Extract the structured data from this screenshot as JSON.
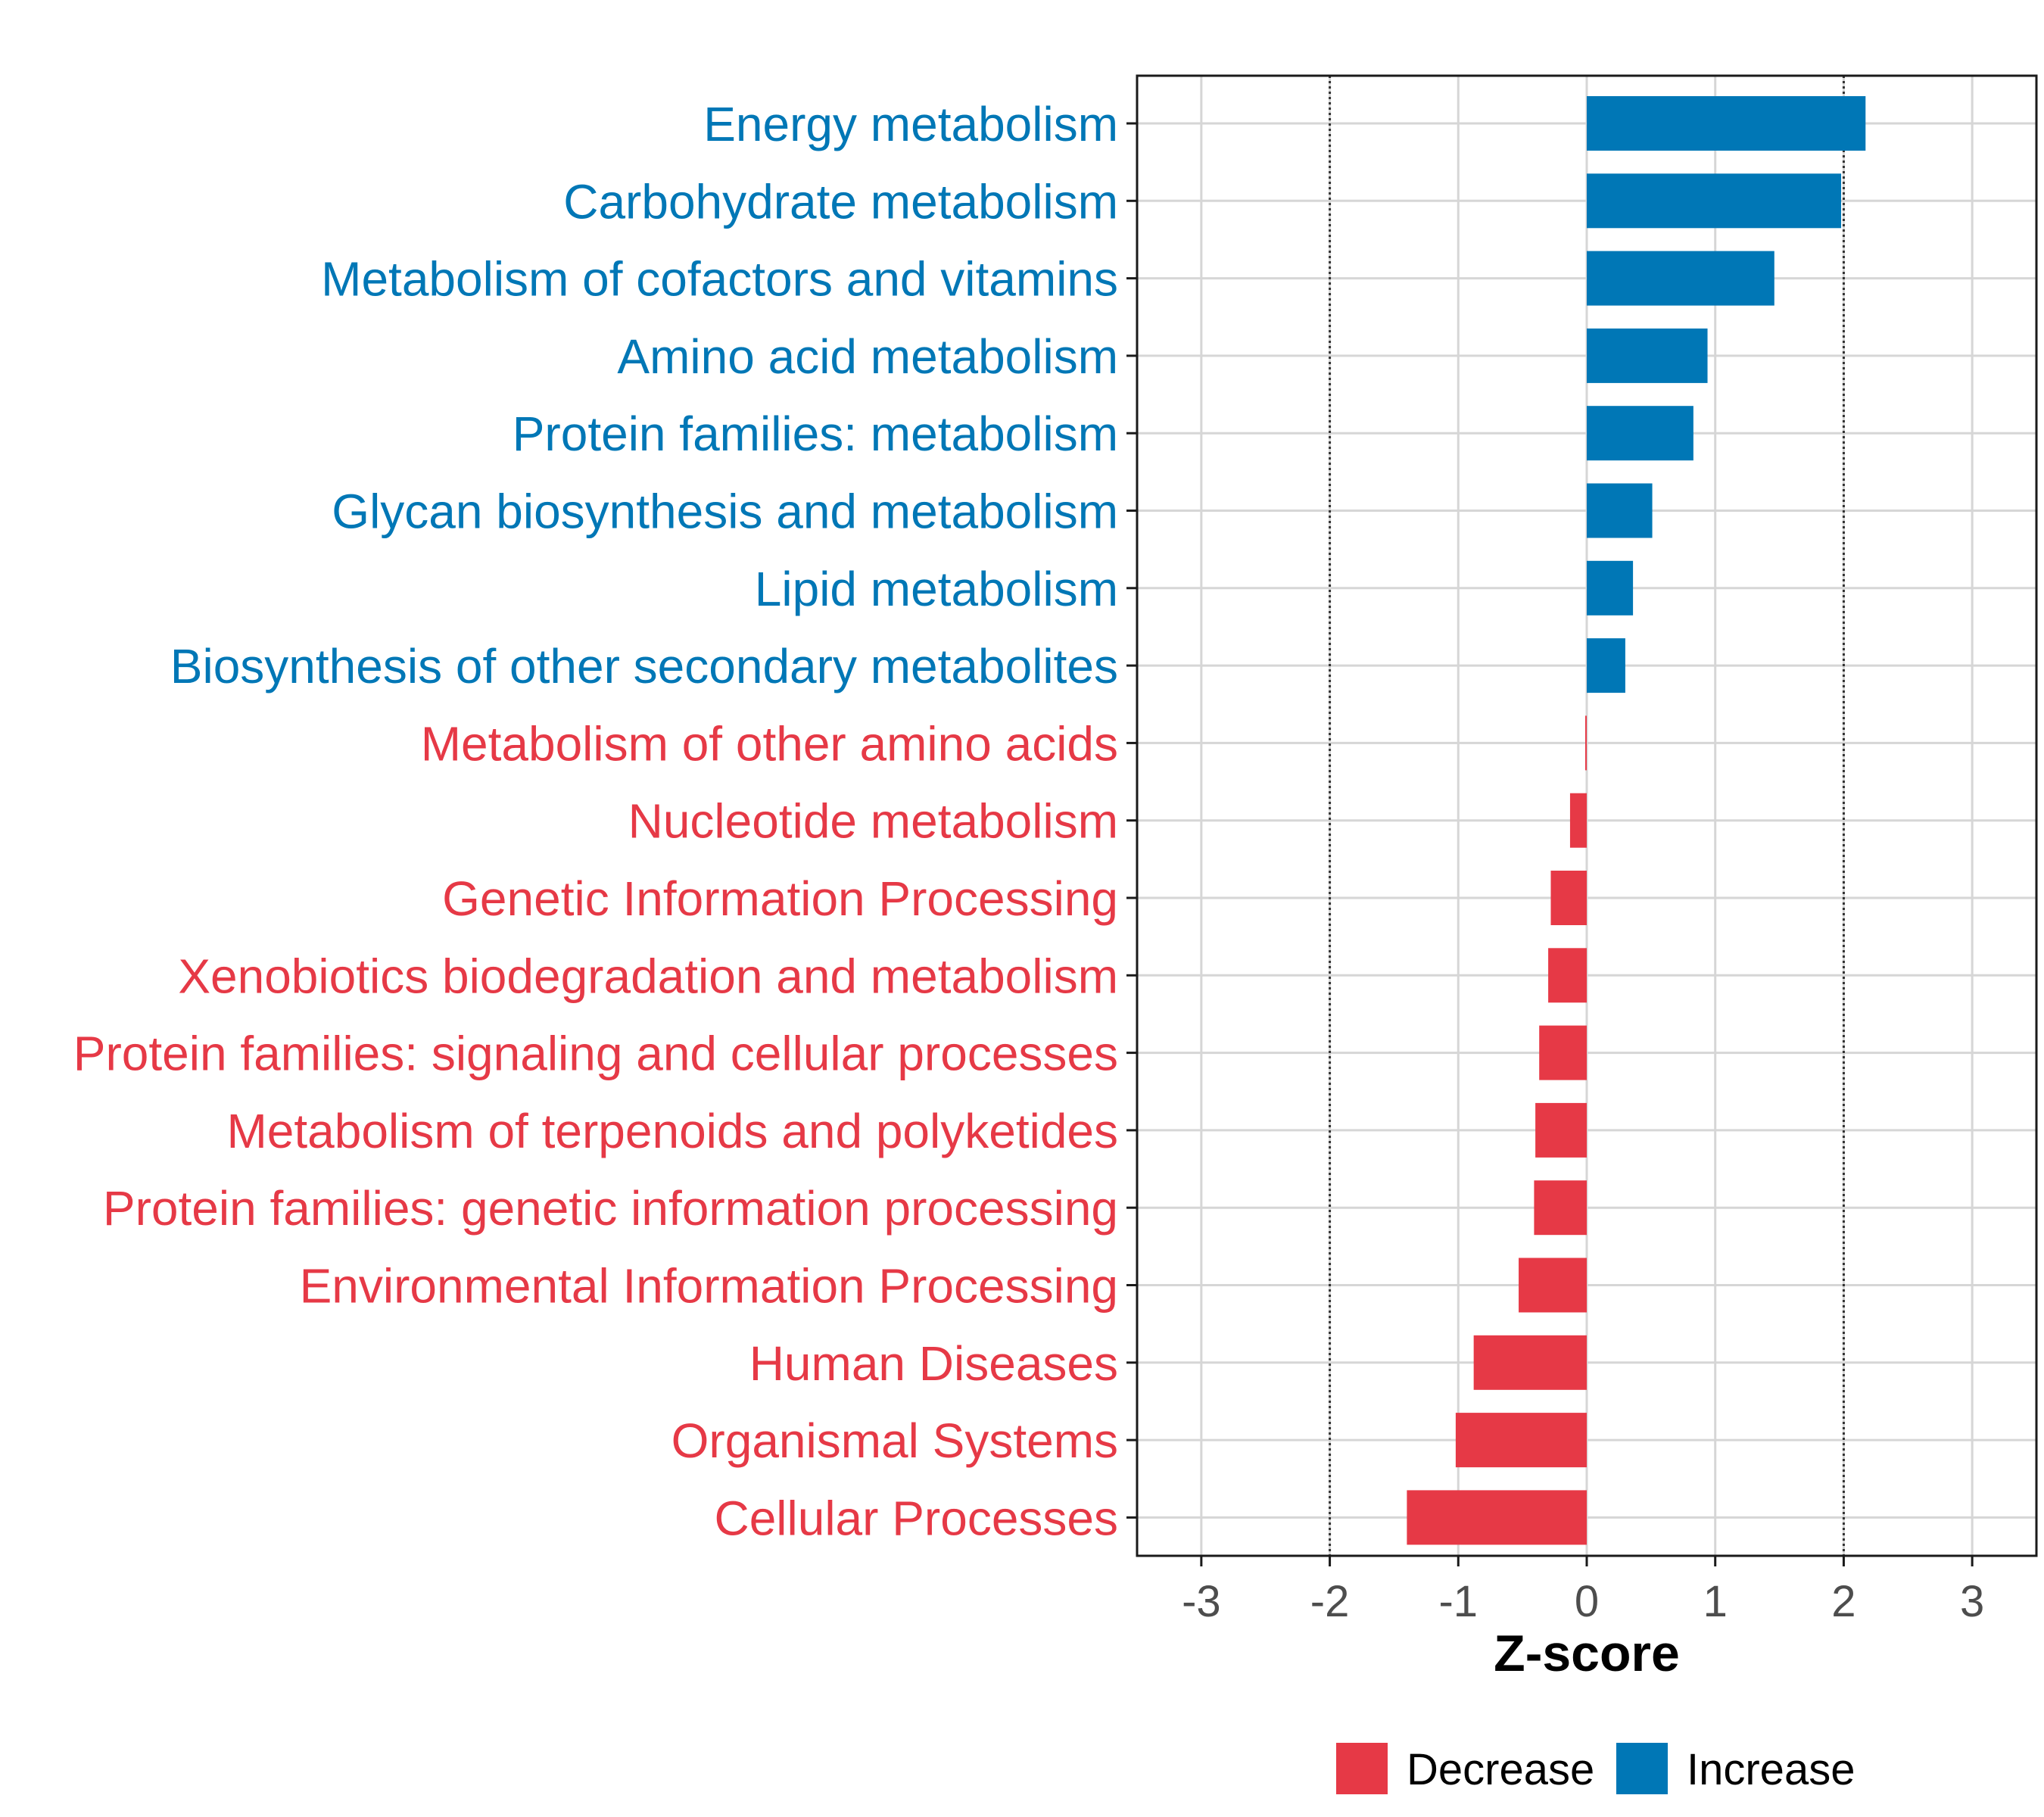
{
  "chart_data": {
    "type": "bar",
    "orientation": "horizontal",
    "title": "",
    "xlabel": "Z-score",
    "ylabel": "",
    "xlim": [
      -3.5,
      3.5
    ],
    "xticks": [
      -3,
      -2,
      -1,
      0,
      1,
      2,
      3
    ],
    "xtick_labels": [
      "-3",
      "-2",
      "-1",
      "0",
      "1",
      "2",
      "3"
    ],
    "reference_lines": [
      -2,
      2
    ],
    "grid": true,
    "categories": [
      "Energy metabolism",
      "Carbohydrate metabolism",
      "Metabolism of cofactors and vitamins",
      "Amino acid metabolism",
      "Protein families: metabolism",
      "Glycan biosynthesis and metabolism",
      "Lipid metabolism",
      "Biosynthesis of other secondary metabolites",
      "Metabolism of other amino acids",
      "Nucleotide metabolism",
      "Genetic Information Processing",
      "Xenobiotics biodegradation and metabolism",
      "Protein families: signaling and cellular processes",
      "Metabolism of terpenoids and polyketides",
      "Protein families: genetic information processing",
      "Environmental Information Processing",
      "Human Diseases",
      "Organismal Systems",
      "Cellular Processes"
    ],
    "values": [
      2.17,
      1.98,
      1.46,
      0.94,
      0.83,
      0.51,
      0.36,
      0.3,
      -0.01,
      -0.13,
      -0.28,
      -0.3,
      -0.37,
      -0.4,
      -0.41,
      -0.53,
      -0.88,
      -1.02,
      -1.4
    ],
    "groups": [
      "Increase",
      "Increase",
      "Increase",
      "Increase",
      "Increase",
      "Increase",
      "Increase",
      "Increase",
      "Decrease",
      "Decrease",
      "Decrease",
      "Decrease",
      "Decrease",
      "Decrease",
      "Decrease",
      "Decrease",
      "Decrease",
      "Decrease",
      "Decrease"
    ],
    "legend": {
      "position": "bottom",
      "entries": [
        {
          "name": "Decrease",
          "color": "#e63946"
        },
        {
          "name": "Increase",
          "color": "#0077b6"
        }
      ]
    }
  }
}
